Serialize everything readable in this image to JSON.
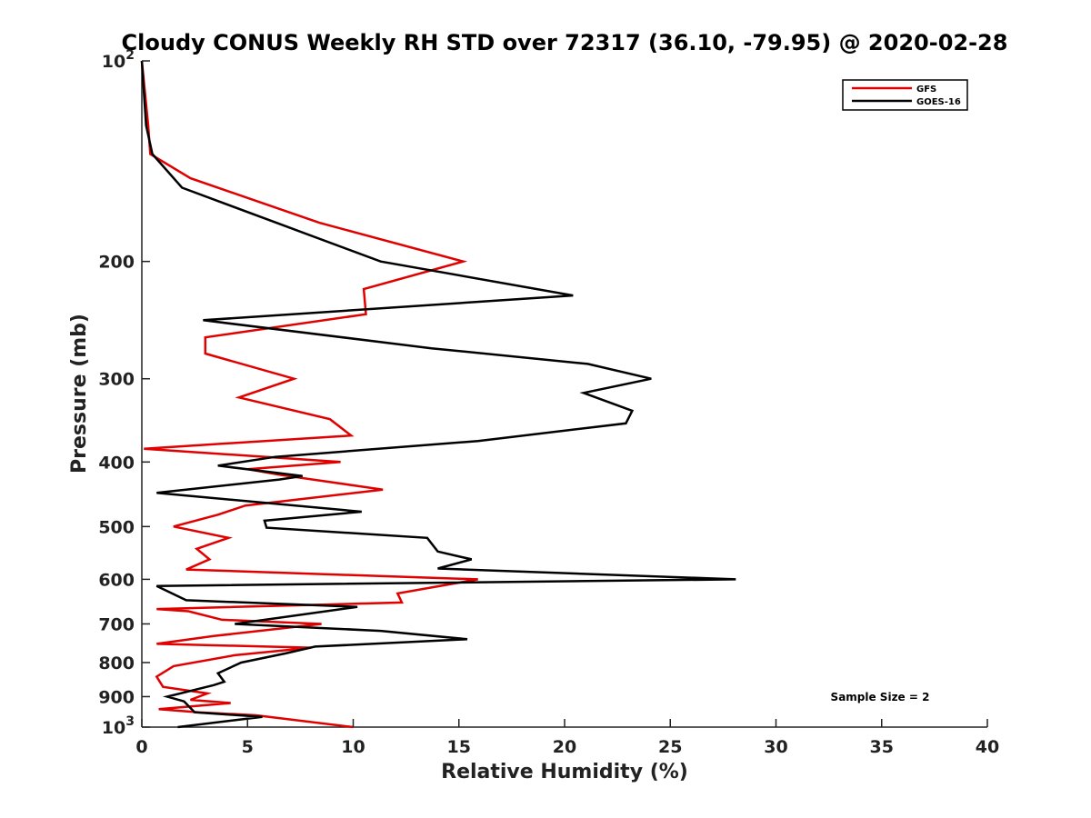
{
  "chart_data": {
    "type": "line",
    "title": "Cloudy CONUS Weekly RH STD over 72317 (36.10, -79.95) @ 2020-02-28",
    "xlabel": "Relative Humidity (%)",
    "ylabel": "Pressure (mb)",
    "xlim": [
      0,
      40
    ],
    "ylim": [
      1000,
      100
    ],
    "y_scale": "log",
    "y_reversed": true,
    "grid": false,
    "legend_position": "top-right",
    "x_ticks": [
      0,
      5,
      10,
      15,
      20,
      25,
      30,
      35,
      40
    ],
    "y_ticks": [
      {
        "value": 100,
        "base": "10",
        "exp": "2"
      },
      {
        "value": 200,
        "label": "200"
      },
      {
        "value": 300,
        "label": "300"
      },
      {
        "value": 400,
        "label": "400"
      },
      {
        "value": 500,
        "label": "500"
      },
      {
        "value": 600,
        "label": "600"
      },
      {
        "value": 700,
        "label": "700"
      },
      {
        "value": 800,
        "label": "800"
      },
      {
        "value": 900,
        "label": "900"
      },
      {
        "value": 1000,
        "base": "10",
        "exp": "3"
      }
    ],
    "annotation": "Sample Size = 2",
    "series": [
      {
        "name": "GFS",
        "color": "#e00000",
        "points": [
          [
            0.0,
            100
          ],
          [
            0.3,
            125
          ],
          [
            0.4,
            138
          ],
          [
            2.3,
            150
          ],
          [
            8.4,
            175
          ],
          [
            15.2,
            200
          ],
          [
            10.5,
            220
          ],
          [
            10.6,
            240
          ],
          [
            3.0,
            260
          ],
          [
            3.0,
            275
          ],
          [
            7.2,
            300
          ],
          [
            4.6,
            320
          ],
          [
            8.9,
            345
          ],
          [
            9.9,
            365
          ],
          [
            0.1,
            382
          ],
          [
            9.4,
            400
          ],
          [
            5.0,
            410
          ],
          [
            6.5,
            418
          ],
          [
            11.4,
            440
          ],
          [
            4.9,
            465
          ],
          [
            3.6,
            480
          ],
          [
            1.5,
            500
          ],
          [
            4.1,
            520
          ],
          [
            2.6,
            540
          ],
          [
            3.2,
            560
          ],
          [
            2.1,
            580
          ],
          [
            15.9,
            600
          ],
          [
            12.1,
            630
          ],
          [
            12.3,
            650
          ],
          [
            0.7,
            665
          ],
          [
            2.2,
            670
          ],
          [
            3.8,
            690
          ],
          [
            8.5,
            700
          ],
          [
            3.4,
            730
          ],
          [
            0.7,
            750
          ],
          [
            8.0,
            760
          ],
          [
            4.4,
            780
          ],
          [
            1.5,
            810
          ],
          [
            0.7,
            840
          ],
          [
            1.0,
            870
          ],
          [
            3.1,
            890
          ],
          [
            2.3,
            910
          ],
          [
            4.2,
            920
          ],
          [
            0.8,
            940
          ],
          [
            2.7,
            950
          ],
          [
            5.4,
            960
          ],
          [
            10.0,
            1000
          ]
        ]
      },
      {
        "name": "GOES-16",
        "color": "#000000",
        "points": [
          [
            0.0,
            100
          ],
          [
            0.2,
            125
          ],
          [
            0.5,
            138
          ],
          [
            1.9,
            155
          ],
          [
            7.0,
            178
          ],
          [
            11.3,
            200
          ],
          [
            20.4,
            225
          ],
          [
            2.9,
            245
          ],
          [
            13.7,
            270
          ],
          [
            21.1,
            285
          ],
          [
            24.1,
            300
          ],
          [
            20.9,
            315
          ],
          [
            23.2,
            335
          ],
          [
            22.9,
            350
          ],
          [
            15.9,
            372
          ],
          [
            6.3,
            393
          ],
          [
            3.6,
            405
          ],
          [
            7.6,
            420
          ],
          [
            6.5,
            425
          ],
          [
            0.7,
            445
          ],
          [
            10.4,
            475
          ],
          [
            5.8,
            490
          ],
          [
            5.9,
            502
          ],
          [
            13.5,
            520
          ],
          [
            14.0,
            545
          ],
          [
            15.6,
            560
          ],
          [
            14.0,
            578
          ],
          [
            28.1,
            600
          ],
          [
            0.7,
            614
          ],
          [
            2.1,
            645
          ],
          [
            10.2,
            660
          ],
          [
            4.4,
            700
          ],
          [
            11.3,
            717
          ],
          [
            15.4,
            738
          ],
          [
            8.2,
            757
          ],
          [
            6.8,
            775
          ],
          [
            4.7,
            800
          ],
          [
            3.6,
            830
          ],
          [
            3.9,
            855
          ],
          [
            3.4,
            865
          ],
          [
            1.2,
            900
          ],
          [
            2.0,
            915
          ],
          [
            2.5,
            950
          ],
          [
            5.7,
            965
          ],
          [
            1.7,
            1000
          ]
        ]
      }
    ]
  }
}
